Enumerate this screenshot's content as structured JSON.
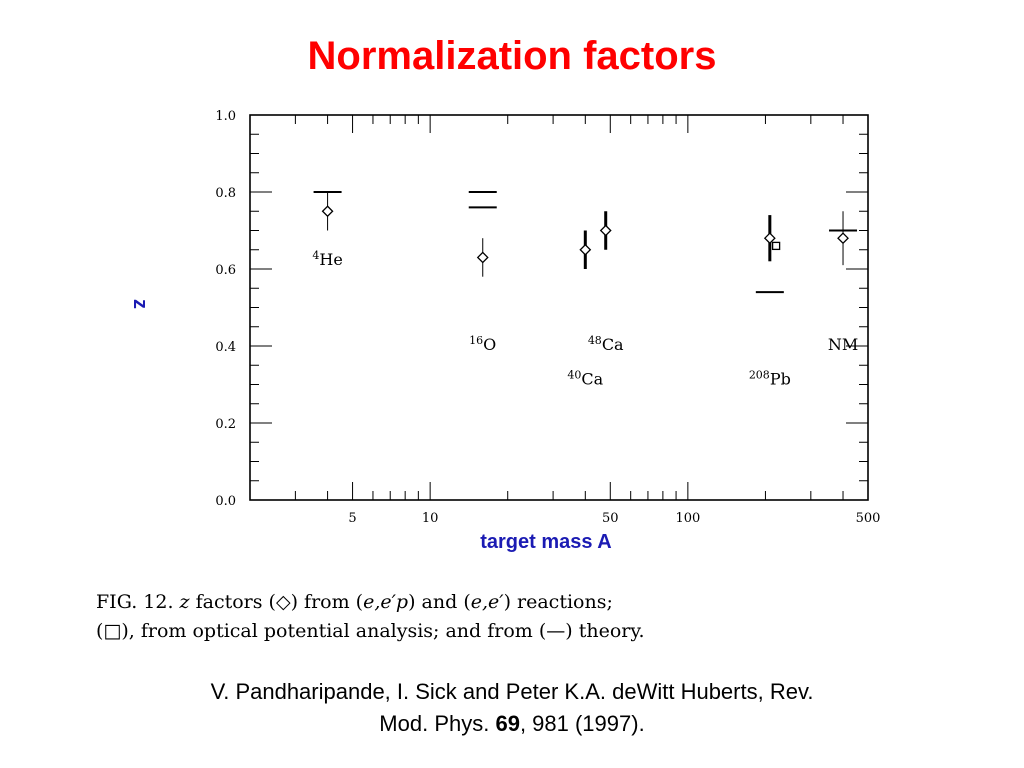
{
  "slide": {
    "title": "Normalization factors"
  },
  "caption": {
    "fig": "FIG. 12.",
    "z": "z",
    "t1": "factors (",
    "diamond": "◇",
    "t2": ") from (",
    "eep": "e,e′p",
    "t3": ") and (",
    "ee": "e,e′",
    "t4": ") reactions;",
    "t5": "(",
    "square": "□",
    "t6": "), from optical potential analysis; and from (—) theory."
  },
  "citation": {
    "authors": "V. Pandharipande, I. Sick and Peter K.A. deWitt Huberts, Rev.",
    "journal": "Mod. Phys. ",
    "volume": "69",
    "rest": ", 981 (1997)."
  },
  "chart_data": {
    "type": "scatter",
    "xlabel": "target mass A",
    "ylabel": "z",
    "x_scale": "log",
    "xlim": [
      2,
      500
    ],
    "ylim": [
      0.0,
      1.0
    ],
    "x_ticks": [
      5,
      10,
      50,
      100,
      500
    ],
    "x_tick_labels": [
      "5",
      "10",
      "50",
      "100",
      "500"
    ],
    "y_ticks": [
      0.0,
      0.2,
      0.4,
      0.6,
      0.8,
      1.0
    ],
    "y_tick_labels": [
      "0.0",
      "0.2",
      "0.4",
      "0.6",
      "0.8",
      "1.0"
    ],
    "series": [
      {
        "name": "(e,e'p) and (e,e') reactions",
        "marker": "diamond",
        "points": [
          {
            "x": 4,
            "y": 0.75,
            "err": 0.05,
            "bold": false
          },
          {
            "x": 16,
            "y": 0.63,
            "err": 0.05,
            "bold": false
          },
          {
            "x": 40,
            "y": 0.65,
            "err": 0.05,
            "bold": true
          },
          {
            "x": 48,
            "y": 0.7,
            "err": 0.05,
            "bold": true
          },
          {
            "x": 208,
            "y": 0.68,
            "err": 0.06,
            "bold": true
          },
          {
            "x": 400,
            "y": 0.68,
            "err": 0.07,
            "bold": false
          }
        ]
      },
      {
        "name": "optical potential analysis",
        "marker": "square",
        "points": [
          {
            "x": 220,
            "y": 0.66
          }
        ]
      },
      {
        "name": "theory",
        "marker": "hline",
        "points": [
          {
            "x": 4,
            "y": 0.8
          },
          {
            "x": 16,
            "y": 0.8
          },
          {
            "x": 16,
            "y": 0.76
          },
          {
            "x": 208,
            "y": 0.54
          },
          {
            "x": 400,
            "y": 0.7
          }
        ]
      }
    ],
    "annotations": [
      {
        "sup": "4",
        "text": "He",
        "x": 4,
        "y": 0.61
      },
      {
        "sup": "16",
        "text": "O",
        "x": 16,
        "y": 0.39
      },
      {
        "sup": "48",
        "text": "Ca",
        "x": 48,
        "y": 0.39
      },
      {
        "sup": "40",
        "text": "Ca",
        "x": 40,
        "y": 0.3
      },
      {
        "sup": "208",
        "text": "Pb",
        "x": 208,
        "y": 0.3
      },
      {
        "sup": "",
        "text": "NM",
        "x": 400,
        "y": 0.39
      }
    ]
  }
}
